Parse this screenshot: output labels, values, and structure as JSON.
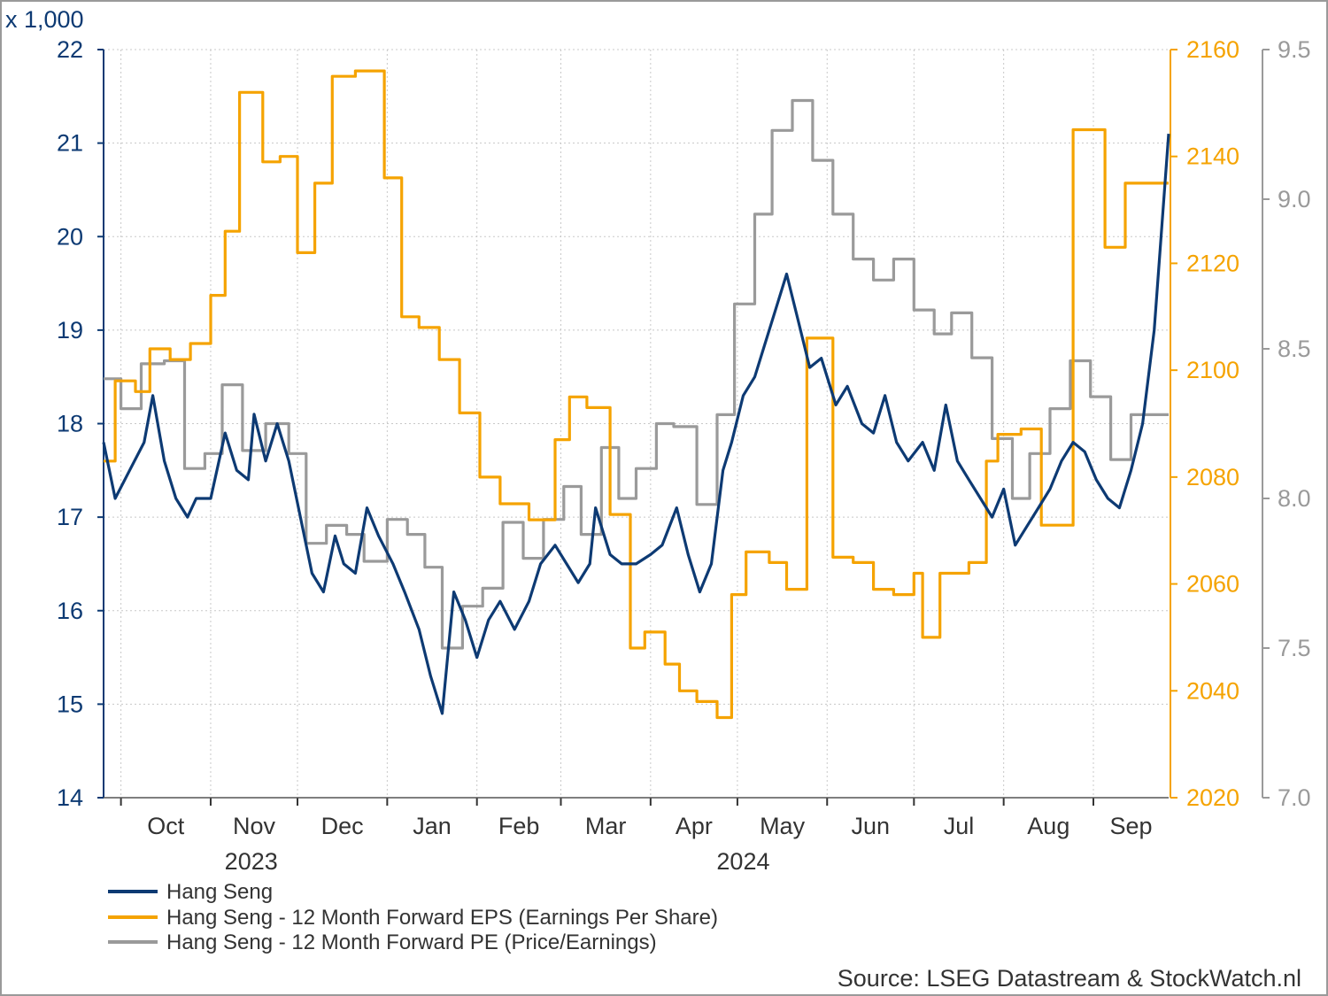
{
  "chart_data": {
    "type": "line",
    "title": "",
    "left_axis_unit": "x 1,000",
    "source": "Source: LSEG Datastream & StockWatch.nl",
    "grid": true,
    "legend_position": "bottom-left",
    "x_axis": {
      "months": [
        "Oct",
        "Nov",
        "Dec",
        "Jan",
        "Feb",
        "Mar",
        "Apr",
        "May",
        "Jun",
        "Jul",
        "Aug",
        "Sep"
      ],
      "month_starts": [
        "2023-10-01",
        "2023-11-01",
        "2023-12-01",
        "2024-01-01",
        "2024-02-01",
        "2024-03-01",
        "2024-04-01",
        "2024-05-01",
        "2024-06-01",
        "2024-07-01",
        "2024-08-01",
        "2024-09-01"
      ],
      "years": [
        {
          "label": "2023",
          "center_date": "2023-11-15"
        },
        {
          "label": "2024",
          "center_date": "2024-05-03"
        }
      ],
      "range": [
        "2023-09-25",
        "2024-09-27"
      ]
    },
    "axes": {
      "left": {
        "ylim": [
          14,
          22
        ],
        "ticks": [
          "14",
          "15",
          "16",
          "17",
          "18",
          "19",
          "20",
          "21",
          "22"
        ],
        "color": "#0d3a73"
      },
      "right_eps": {
        "ylim": [
          2020,
          2160
        ],
        "ticks": [
          "2020",
          "2040",
          "2060",
          "2080",
          "2100",
          "2120",
          "2140",
          "2160"
        ],
        "color": "#f5a300"
      },
      "right_pe": {
        "ylim": [
          7.0,
          9.5
        ],
        "ticks": [
          "7.0",
          "7.5",
          "8.0",
          "8.5",
          "9.0",
          "9.5"
        ],
        "color": "#9a9a9a"
      }
    },
    "series": [
      {
        "name": "Hang Seng",
        "axis": "left",
        "color": "#0d3a73",
        "points": [
          [
            "2023-09-25",
            17.8
          ],
          [
            "2023-09-29",
            17.2
          ],
          [
            "2023-10-04",
            17.5
          ],
          [
            "2023-10-09",
            17.8
          ],
          [
            "2023-10-12",
            18.3
          ],
          [
            "2023-10-16",
            17.6
          ],
          [
            "2023-10-20",
            17.2
          ],
          [
            "2023-10-24",
            17.0
          ],
          [
            "2023-10-27",
            17.2
          ],
          [
            "2023-11-01",
            17.2
          ],
          [
            "2023-11-06",
            17.9
          ],
          [
            "2023-11-10",
            17.5
          ],
          [
            "2023-11-14",
            17.4
          ],
          [
            "2023-11-16",
            18.1
          ],
          [
            "2023-11-20",
            17.6
          ],
          [
            "2023-11-24",
            18.0
          ],
          [
            "2023-11-28",
            17.6
          ],
          [
            "2023-12-02",
            17.0
          ],
          [
            "2023-12-06",
            16.4
          ],
          [
            "2023-12-10",
            16.2
          ],
          [
            "2023-12-14",
            16.8
          ],
          [
            "2023-12-17",
            16.5
          ],
          [
            "2023-12-21",
            16.4
          ],
          [
            "2023-12-25",
            17.1
          ],
          [
            "2023-12-29",
            16.8
          ],
          [
            "2024-01-03",
            16.5
          ],
          [
            "2024-01-07",
            16.2
          ],
          [
            "2024-01-12",
            15.8
          ],
          [
            "2024-01-16",
            15.3
          ],
          [
            "2024-01-20",
            14.9
          ],
          [
            "2024-01-24",
            16.2
          ],
          [
            "2024-01-28",
            15.9
          ],
          [
            "2024-02-01",
            15.5
          ],
          [
            "2024-02-05",
            15.9
          ],
          [
            "2024-02-09",
            16.1
          ],
          [
            "2024-02-14",
            15.8
          ],
          [
            "2024-02-19",
            16.1
          ],
          [
            "2024-02-23",
            16.5
          ],
          [
            "2024-02-28",
            16.7
          ],
          [
            "2024-03-03",
            16.5
          ],
          [
            "2024-03-07",
            16.3
          ],
          [
            "2024-03-11",
            16.5
          ],
          [
            "2024-03-13",
            17.1
          ],
          [
            "2024-03-18",
            16.6
          ],
          [
            "2024-03-22",
            16.5
          ],
          [
            "2024-03-27",
            16.5
          ],
          [
            "2024-04-01",
            16.6
          ],
          [
            "2024-04-05",
            16.7
          ],
          [
            "2024-04-10",
            17.1
          ],
          [
            "2024-04-14",
            16.6
          ],
          [
            "2024-04-18",
            16.2
          ],
          [
            "2024-04-22",
            16.5
          ],
          [
            "2024-04-26",
            17.5
          ],
          [
            "2024-04-29",
            17.8
          ],
          [
            "2024-05-03",
            18.3
          ],
          [
            "2024-05-07",
            18.5
          ],
          [
            "2024-05-11",
            18.9
          ],
          [
            "2024-05-15",
            19.3
          ],
          [
            "2024-05-18",
            19.6
          ],
          [
            "2024-05-22",
            19.1
          ],
          [
            "2024-05-26",
            18.6
          ],
          [
            "2024-05-30",
            18.7
          ],
          [
            "2024-06-04",
            18.2
          ],
          [
            "2024-06-08",
            18.4
          ],
          [
            "2024-06-13",
            18.0
          ],
          [
            "2024-06-17",
            17.9
          ],
          [
            "2024-06-21",
            18.3
          ],
          [
            "2024-06-25",
            17.8
          ],
          [
            "2024-06-29",
            17.6
          ],
          [
            "2024-07-04",
            17.8
          ],
          [
            "2024-07-08",
            17.5
          ],
          [
            "2024-07-12",
            18.2
          ],
          [
            "2024-07-16",
            17.6
          ],
          [
            "2024-07-20",
            17.4
          ],
          [
            "2024-07-24",
            17.2
          ],
          [
            "2024-07-28",
            17.0
          ],
          [
            "2024-08-01",
            17.3
          ],
          [
            "2024-08-05",
            16.7
          ],
          [
            "2024-08-09",
            16.9
          ],
          [
            "2024-08-13",
            17.1
          ],
          [
            "2024-08-17",
            17.3
          ],
          [
            "2024-08-21",
            17.6
          ],
          [
            "2024-08-25",
            17.8
          ],
          [
            "2024-08-29",
            17.7
          ],
          [
            "2024-09-02",
            17.4
          ],
          [
            "2024-09-06",
            17.2
          ],
          [
            "2024-09-10",
            17.1
          ],
          [
            "2024-09-14",
            17.5
          ],
          [
            "2024-09-18",
            18.0
          ],
          [
            "2024-09-22",
            19.0
          ],
          [
            "2024-09-27",
            21.1
          ]
        ]
      },
      {
        "name": "Hang Seng - 12 Month Forward EPS (Earnings Per Share)",
        "axis": "right_eps",
        "color": "#f5a300",
        "points": [
          [
            "2023-09-25",
            2083
          ],
          [
            "2023-09-29",
            2098
          ],
          [
            "2023-10-06",
            2096
          ],
          [
            "2023-10-11",
            2104
          ],
          [
            "2023-10-18",
            2102
          ],
          [
            "2023-10-25",
            2105
          ],
          [
            "2023-11-01",
            2114
          ],
          [
            "2023-11-06",
            2126
          ],
          [
            "2023-11-11",
            2152
          ],
          [
            "2023-11-19",
            2139
          ],
          [
            "2023-11-25",
            2140
          ],
          [
            "2023-12-01",
            2122
          ],
          [
            "2023-12-07",
            2135
          ],
          [
            "2023-12-13",
            2155
          ],
          [
            "2023-12-21",
            2156
          ],
          [
            "2023-12-31",
            2136
          ],
          [
            "2024-01-06",
            2110
          ],
          [
            "2024-01-12",
            2108
          ],
          [
            "2024-01-19",
            2102
          ],
          [
            "2024-01-26",
            2092
          ],
          [
            "2024-02-02",
            2080
          ],
          [
            "2024-02-09",
            2075
          ],
          [
            "2024-02-19",
            2072
          ],
          [
            "2024-02-28",
            2087
          ],
          [
            "2024-03-04",
            2095
          ],
          [
            "2024-03-10",
            2093
          ],
          [
            "2024-03-18",
            2073
          ],
          [
            "2024-03-25",
            2048
          ],
          [
            "2024-03-30",
            2051
          ],
          [
            "2024-04-06",
            2045
          ],
          [
            "2024-04-11",
            2040
          ],
          [
            "2024-04-17",
            2038
          ],
          [
            "2024-04-24",
            2035
          ],
          [
            "2024-04-29",
            2058
          ],
          [
            "2024-05-04",
            2066
          ],
          [
            "2024-05-12",
            2064
          ],
          [
            "2024-05-18",
            2059
          ],
          [
            "2024-05-25",
            2106
          ],
          [
            "2024-06-03",
            2065
          ],
          [
            "2024-06-10",
            2064
          ],
          [
            "2024-06-17",
            2059
          ],
          [
            "2024-06-24",
            2058
          ],
          [
            "2024-07-01",
            2062
          ],
          [
            "2024-07-04",
            2050
          ],
          [
            "2024-07-10",
            2062
          ],
          [
            "2024-07-20",
            2064
          ],
          [
            "2024-07-26",
            2083
          ],
          [
            "2024-07-30",
            2088
          ],
          [
            "2024-08-07",
            2089
          ],
          [
            "2024-08-14",
            2071
          ],
          [
            "2024-08-25",
            2145
          ],
          [
            "2024-09-05",
            2123
          ],
          [
            "2024-09-12",
            2135
          ],
          [
            "2024-09-27",
            2135
          ]
        ]
      },
      {
        "name": "Hang Seng - 12 Month Forward PE (Price/Earnings)",
        "axis": "right_pe",
        "color": "#9a9a9a",
        "points": [
          [
            "2023-09-25",
            8.4
          ],
          [
            "2023-10-01",
            8.3
          ],
          [
            "2023-10-08",
            8.45
          ],
          [
            "2023-10-16",
            8.46
          ],
          [
            "2023-10-23",
            8.1
          ],
          [
            "2023-10-30",
            8.15
          ],
          [
            "2023-11-05",
            8.38
          ],
          [
            "2023-11-12",
            8.16
          ],
          [
            "2023-11-20",
            8.25
          ],
          [
            "2023-11-28",
            8.15
          ],
          [
            "2023-12-04",
            7.85
          ],
          [
            "2023-12-11",
            7.91
          ],
          [
            "2023-12-18",
            7.88
          ],
          [
            "2023-12-24",
            7.79
          ],
          [
            "2024-01-01",
            7.93
          ],
          [
            "2024-01-08",
            7.88
          ],
          [
            "2024-01-14",
            7.77
          ],
          [
            "2024-01-20",
            7.5
          ],
          [
            "2024-01-27",
            7.64
          ],
          [
            "2024-02-03",
            7.7
          ],
          [
            "2024-02-10",
            7.92
          ],
          [
            "2024-02-17",
            7.8
          ],
          [
            "2024-02-24",
            7.93
          ],
          [
            "2024-03-02",
            8.04
          ],
          [
            "2024-03-08",
            7.88
          ],
          [
            "2024-03-15",
            8.17
          ],
          [
            "2024-03-21",
            8.0
          ],
          [
            "2024-03-27",
            8.1
          ],
          [
            "2024-04-03",
            8.25
          ],
          [
            "2024-04-09",
            8.24
          ],
          [
            "2024-04-17",
            7.98
          ],
          [
            "2024-04-24",
            8.28
          ],
          [
            "2024-04-30",
            8.65
          ],
          [
            "2024-05-07",
            8.95
          ],
          [
            "2024-05-13",
            9.23
          ],
          [
            "2024-05-20",
            9.33
          ],
          [
            "2024-05-27",
            9.13
          ],
          [
            "2024-06-03",
            8.95
          ],
          [
            "2024-06-10",
            8.8
          ],
          [
            "2024-06-17",
            8.73
          ],
          [
            "2024-06-24",
            8.8
          ],
          [
            "2024-07-01",
            8.63
          ],
          [
            "2024-07-08",
            8.55
          ],
          [
            "2024-07-14",
            8.62
          ],
          [
            "2024-07-21",
            8.47
          ],
          [
            "2024-07-28",
            8.2
          ],
          [
            "2024-08-04",
            8.0
          ],
          [
            "2024-08-10",
            8.15
          ],
          [
            "2024-08-17",
            8.3
          ],
          [
            "2024-08-24",
            8.46
          ],
          [
            "2024-08-31",
            8.34
          ],
          [
            "2024-09-07",
            8.13
          ],
          [
            "2024-09-14",
            8.28
          ],
          [
            "2024-09-27",
            8.28
          ]
        ]
      }
    ]
  }
}
